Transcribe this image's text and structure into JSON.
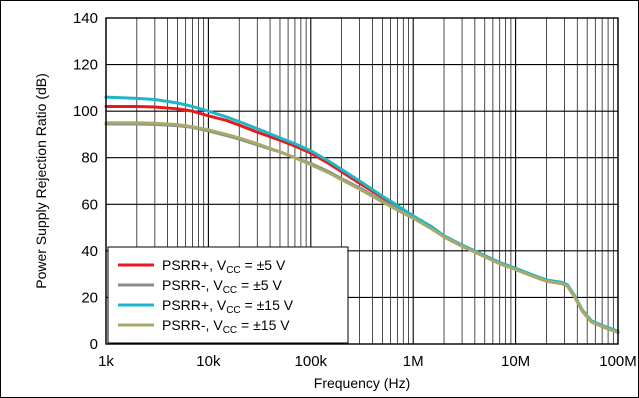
{
  "chart_data": {
    "type": "line",
    "xlabel": "Frequency (Hz)",
    "ylabel": "Power Supply Rejection Ratio (dB)",
    "x_scale": "log",
    "xlim": [
      1000,
      100000000
    ],
    "ylim": [
      0,
      140
    ],
    "x_ticks": [
      {
        "value": 1000,
        "label": "1k"
      },
      {
        "value": 10000,
        "label": "10k"
      },
      {
        "value": 100000,
        "label": "100k"
      },
      {
        "value": 1000000,
        "label": "1M"
      },
      {
        "value": 10000000,
        "label": "10M"
      },
      {
        "value": 100000000,
        "label": "100M"
      }
    ],
    "y_ticks": [
      0,
      20,
      40,
      60,
      80,
      100,
      120,
      140
    ],
    "grid": true,
    "legend_position": "bottom-left",
    "series": [
      {
        "legend_prefix": "PSRR+, V",
        "legend_sub": "CC",
        "legend_suffix": " = ±5 V",
        "color": "#e8191c",
        "points": [
          [
            1000,
            102
          ],
          [
            2000,
            102
          ],
          [
            3000,
            101.8
          ],
          [
            5000,
            101
          ],
          [
            7000,
            100
          ],
          [
            10000,
            98
          ],
          [
            15000,
            96
          ],
          [
            20000,
            94
          ],
          [
            30000,
            91
          ],
          [
            50000,
            87.5
          ],
          [
            70000,
            85
          ],
          [
            100000,
            82
          ],
          [
            150000,
            77.5
          ],
          [
            200000,
            74
          ],
          [
            300000,
            69
          ],
          [
            500000,
            63
          ],
          [
            700000,
            59
          ],
          [
            1000000,
            54.5
          ],
          [
            1500000,
            50
          ],
          [
            2000000,
            46
          ],
          [
            3000000,
            42
          ],
          [
            5000000,
            37.5
          ],
          [
            7000000,
            34.5
          ],
          [
            10000000,
            32
          ],
          [
            15000000,
            29
          ],
          [
            20000000,
            27
          ],
          [
            28000000,
            26
          ],
          [
            32000000,
            25
          ],
          [
            38000000,
            20
          ],
          [
            45000000,
            14
          ],
          [
            55000000,
            9.5
          ],
          [
            70000000,
            7.5
          ],
          [
            100000000,
            5
          ]
        ]
      },
      {
        "legend_prefix": "PSRR-, V",
        "legend_sub": "CC",
        "legend_suffix": " = ±5 V",
        "color": "#8c8c8c",
        "points": [
          [
            1000,
            94.5
          ],
          [
            2000,
            94.5
          ],
          [
            3000,
            94.3
          ],
          [
            5000,
            93.8
          ],
          [
            7000,
            93
          ],
          [
            10000,
            91.5
          ],
          [
            15000,
            89.5
          ],
          [
            20000,
            88
          ],
          [
            30000,
            85.5
          ],
          [
            50000,
            82.5
          ],
          [
            70000,
            80
          ],
          [
            100000,
            77.5
          ],
          [
            150000,
            74
          ],
          [
            200000,
            71
          ],
          [
            300000,
            67
          ],
          [
            500000,
            61.5
          ],
          [
            700000,
            58
          ],
          [
            1000000,
            54
          ],
          [
            1500000,
            50
          ],
          [
            2000000,
            46
          ],
          [
            3000000,
            42
          ],
          [
            5000000,
            37.5
          ],
          [
            7000000,
            34.5
          ],
          [
            10000000,
            32
          ],
          [
            15000000,
            29
          ],
          [
            20000000,
            27
          ],
          [
            28000000,
            26
          ],
          [
            32000000,
            25
          ],
          [
            38000000,
            20
          ],
          [
            45000000,
            14
          ],
          [
            55000000,
            9.5
          ],
          [
            70000000,
            7.5
          ],
          [
            100000000,
            5
          ]
        ]
      },
      {
        "legend_prefix": "PSRR+, V",
        "legend_sub": "CC",
        "legend_suffix": " = ±15 V",
        "color": "#1eb6c8",
        "points": [
          [
            1000,
            106
          ],
          [
            2000,
            105.5
          ],
          [
            3000,
            105
          ],
          [
            5000,
            103.5
          ],
          [
            7000,
            102
          ],
          [
            10000,
            100
          ],
          [
            15000,
            97.5
          ],
          [
            20000,
            95.5
          ],
          [
            30000,
            92.5
          ],
          [
            50000,
            88.5
          ],
          [
            70000,
            86
          ],
          [
            100000,
            83
          ],
          [
            150000,
            78.5
          ],
          [
            200000,
            75
          ],
          [
            300000,
            70
          ],
          [
            500000,
            63.5
          ],
          [
            700000,
            59.5
          ],
          [
            1000000,
            55
          ],
          [
            1500000,
            50.5
          ],
          [
            2000000,
            46.5
          ],
          [
            3000000,
            42.5
          ],
          [
            5000000,
            38
          ],
          [
            7000000,
            35
          ],
          [
            10000000,
            32.5
          ],
          [
            15000000,
            29.5
          ],
          [
            20000000,
            27.5
          ],
          [
            28000000,
            26.5
          ],
          [
            32000000,
            25.5
          ],
          [
            38000000,
            20.5
          ],
          [
            45000000,
            14.5
          ],
          [
            55000000,
            10
          ],
          [
            70000000,
            8
          ],
          [
            100000000,
            5.5
          ]
        ]
      },
      {
        "legend_prefix": "PSRR-, V",
        "legend_sub": "CC",
        "legend_suffix": " = ±15 V",
        "color": "#a8a96a",
        "points": [
          [
            1000,
            95
          ],
          [
            2000,
            95
          ],
          [
            3000,
            94.8
          ],
          [
            5000,
            94.2
          ],
          [
            7000,
            93.3
          ],
          [
            10000,
            92
          ],
          [
            15000,
            90
          ],
          [
            20000,
            88.5
          ],
          [
            30000,
            86
          ],
          [
            50000,
            82.5
          ],
          [
            70000,
            80
          ],
          [
            100000,
            77
          ],
          [
            150000,
            73.5
          ],
          [
            200000,
            70.5
          ],
          [
            300000,
            66.5
          ],
          [
            500000,
            61
          ],
          [
            700000,
            57.5
          ],
          [
            1000000,
            54
          ],
          [
            1500000,
            49.5
          ],
          [
            2000000,
            46
          ],
          [
            3000000,
            42
          ],
          [
            5000000,
            37.5
          ],
          [
            7000000,
            34.5
          ],
          [
            10000000,
            32
          ],
          [
            15000000,
            29
          ],
          [
            20000000,
            27
          ],
          [
            28000000,
            26
          ],
          [
            32000000,
            25
          ],
          [
            38000000,
            20
          ],
          [
            45000000,
            14
          ],
          [
            55000000,
            9.5
          ],
          [
            70000000,
            7.5
          ],
          [
            100000000,
            5
          ]
        ]
      }
    ]
  }
}
